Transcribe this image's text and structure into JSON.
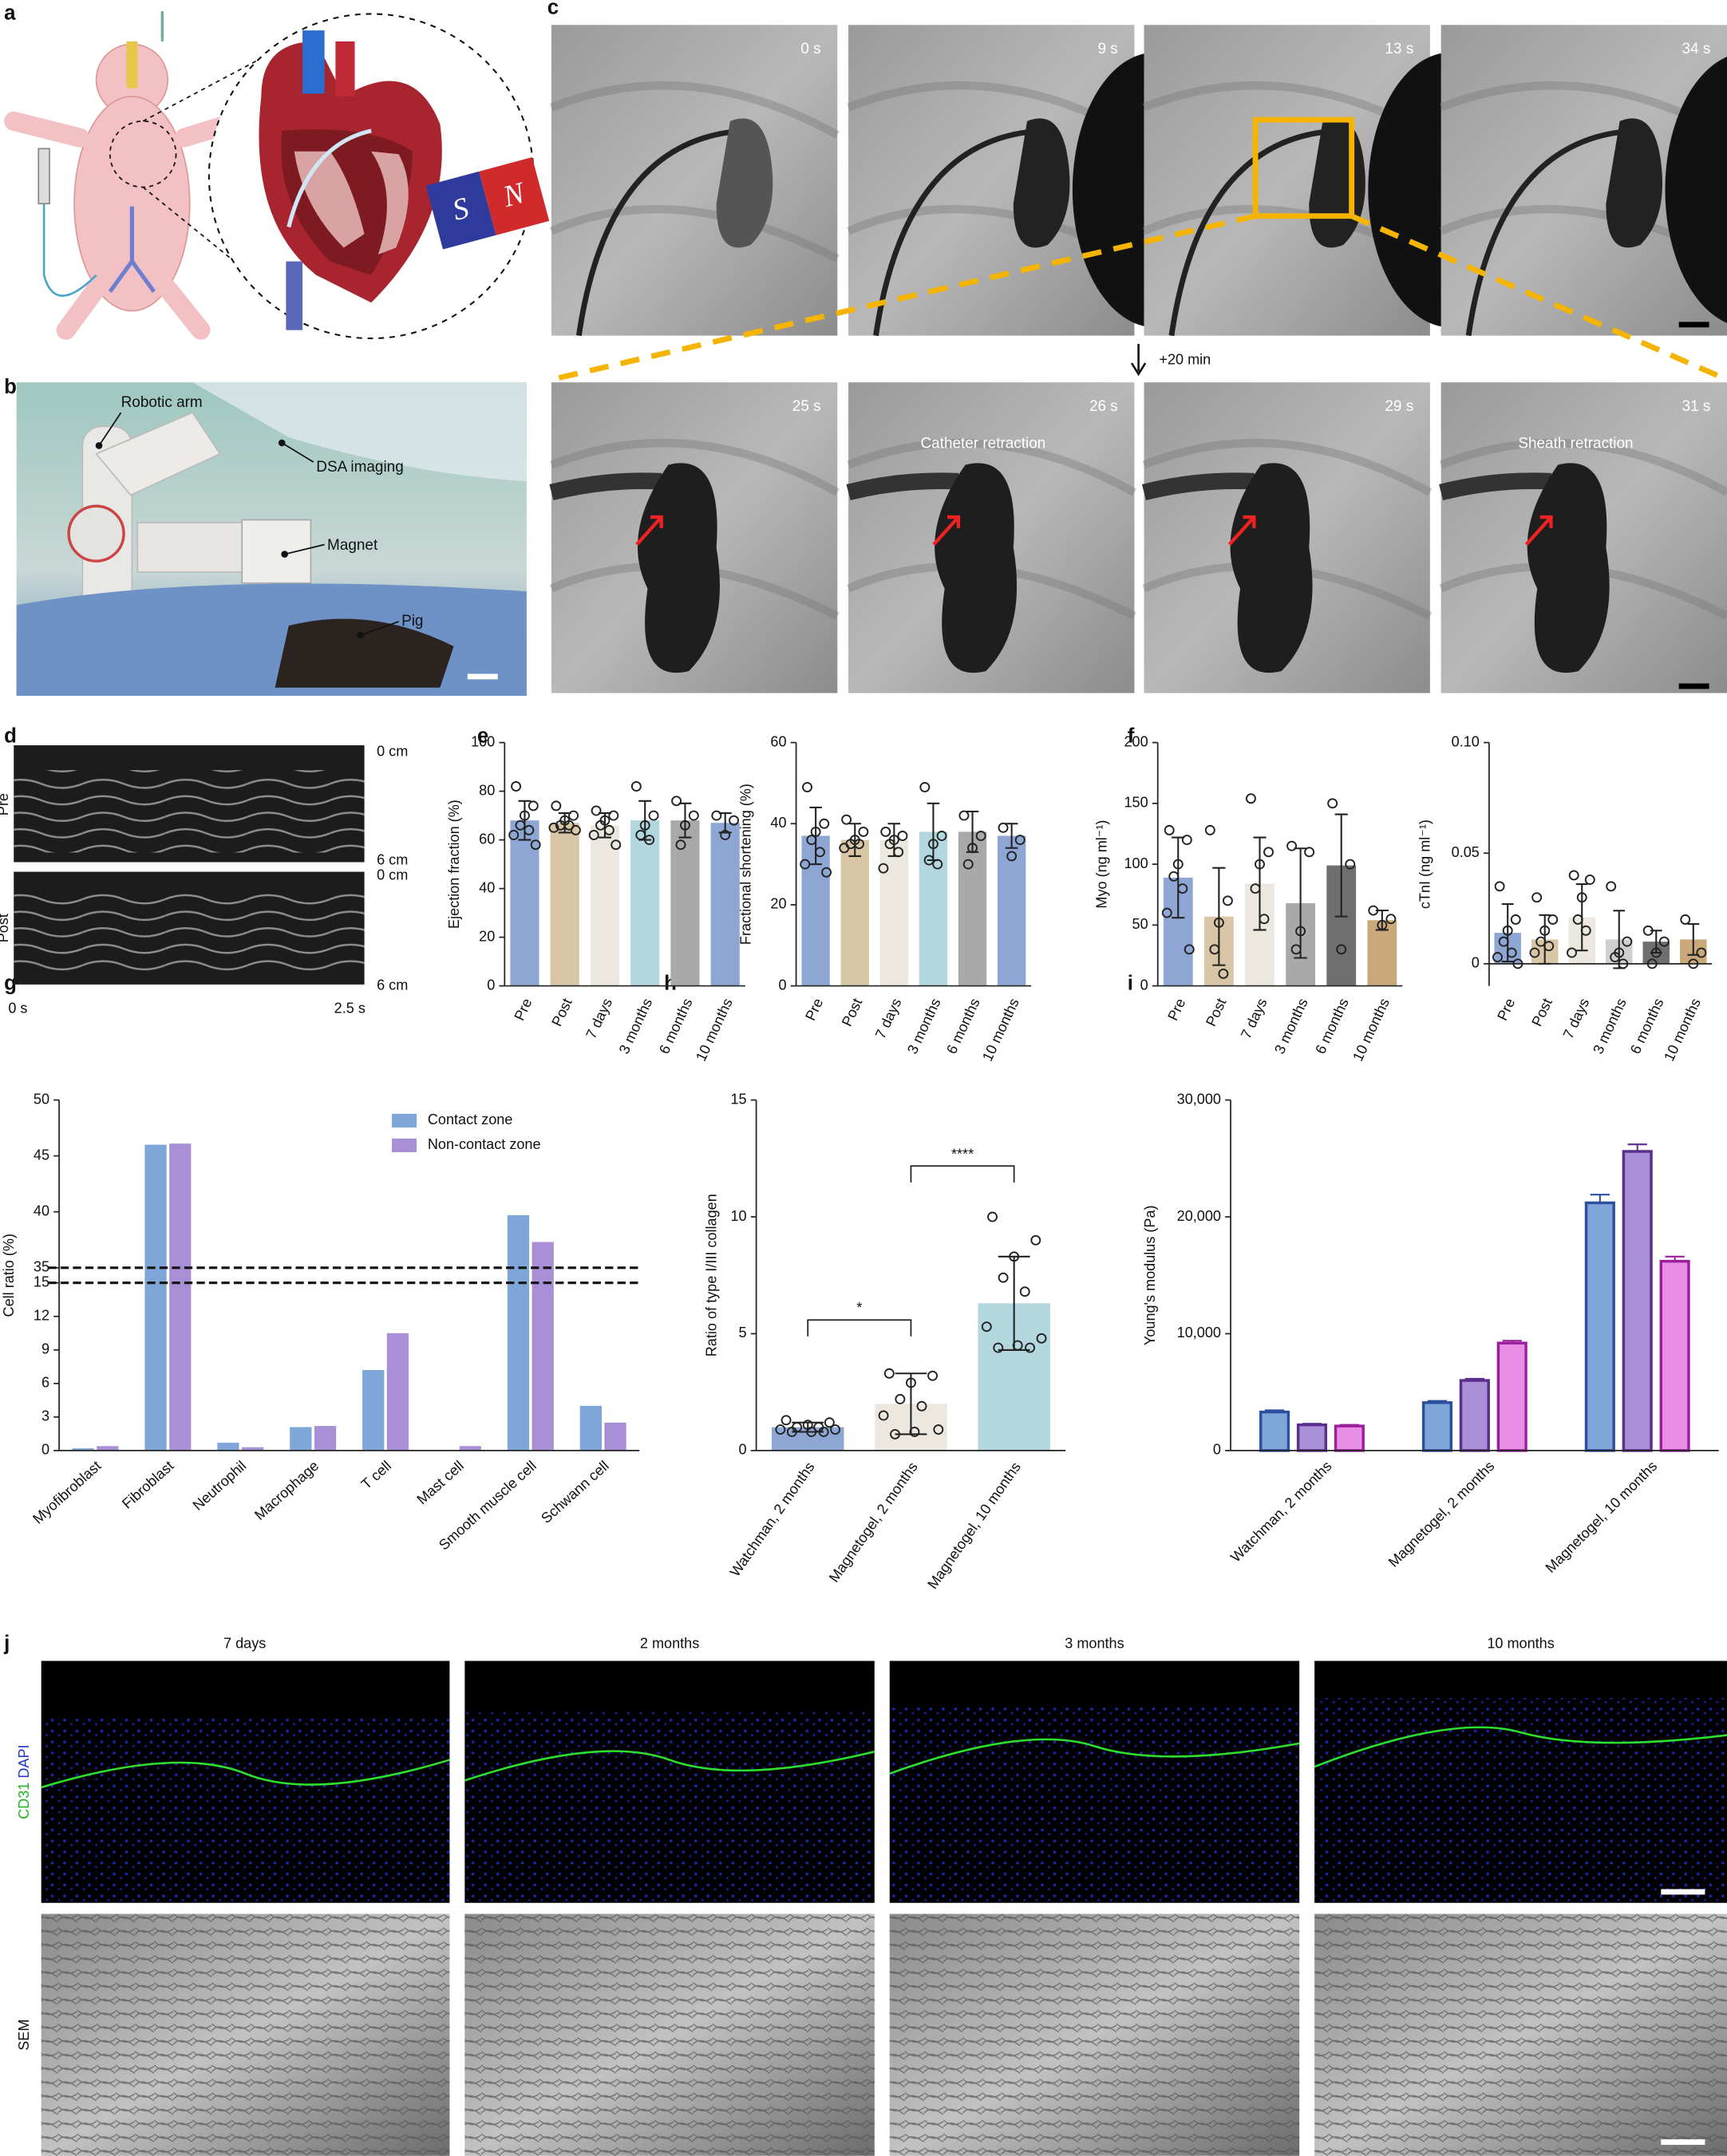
{
  "panel_letters": [
    "a",
    "b",
    "c",
    "d",
    "e",
    "f",
    "g",
    "h",
    "i",
    "j"
  ],
  "panel_a": {
    "magnet": [
      "S",
      "N"
    ]
  },
  "panel_b": {
    "callouts": [
      "Robotic arm",
      "DSA imaging",
      "Magnet",
      "Pig"
    ]
  },
  "panel_c": {
    "times_top": [
      "0 s",
      "9 s",
      "13 s",
      "34 s"
    ],
    "times_bottom": [
      "25 s",
      "26 s",
      "29 s",
      "31 s"
    ],
    "interval": "+20 min",
    "captions": [
      "Catheter retraction",
      "Sheath retraction"
    ]
  },
  "panel_d": {
    "rows": [
      "Pre",
      "Post"
    ],
    "depth_labels": [
      "0 cm",
      "6 cm",
      "0 cm",
      "6 cm"
    ],
    "time_labels": [
      "0 s",
      "2.5 s"
    ]
  },
  "panel_j": {
    "columns": [
      "7 days",
      "2 months",
      "3 months",
      "10 months"
    ],
    "stain": [
      "CD31",
      "DAPI"
    ],
    "sem": "SEM"
  },
  "chart_data": [
    {
      "type": "bar",
      "y_label": "Ejection fraction (%)",
      "categories": [
        "Pre",
        "Post",
        "7 days",
        "3 months",
        "6 months",
        "10 months"
      ],
      "values": [
        68,
        67,
        66,
        68,
        68,
        67
      ],
      "errors": [
        8,
        4,
        5,
        8,
        7,
        4
      ],
      "points": [
        [
          82,
          74,
          70,
          66,
          64,
          62,
          58
        ],
        [
          74,
          70,
          68,
          66,
          66,
          65,
          64
        ],
        [
          72,
          70,
          68,
          66,
          64,
          62,
          58
        ],
        [
          82,
          70,
          66,
          62,
          60
        ],
        [
          76,
          70,
          66,
          58
        ],
        [
          70,
          68,
          62
        ]
      ],
      "colors": [
        "#8ea6d4",
        "#d8c6a6",
        "#ece8df",
        "#b3d7de",
        "#a9a9a9",
        "#8ea6d4"
      ],
      "ylim": [
        0,
        100
      ],
      "yticks": [
        0,
        20,
        40,
        60,
        80,
        100
      ]
    },
    {
      "type": "bar",
      "y_label": "Fractional shortening (%)",
      "categories": [
        "Pre",
        "Post",
        "7 days",
        "3 months",
        "6 months",
        "10 months"
      ],
      "values": [
        37,
        36,
        36,
        38,
        38,
        37
      ],
      "errors": [
        7,
        4,
        4,
        7,
        5,
        3
      ],
      "points": [
        [
          49,
          40,
          38,
          36,
          33,
          30,
          28
        ],
        [
          41,
          38,
          36,
          35,
          35,
          34
        ],
        [
          38,
          37,
          36,
          35,
          33,
          29
        ],
        [
          49,
          37,
          35,
          31,
          30
        ],
        [
          42,
          37,
          34,
          30
        ],
        [
          39,
          36,
          32
        ]
      ],
      "colors": [
        "#8ea6d4",
        "#d8c6a6",
        "#ece8df",
        "#b3d7de",
        "#a9a9a9",
        "#8ea6d4"
      ],
      "ylim": [
        0,
        60
      ],
      "yticks": [
        0,
        20,
        40,
        60
      ]
    },
    {
      "type": "bar",
      "y_label": "Myo (ng ml⁻¹)",
      "categories": [
        "Pre",
        "Post",
        "7 days",
        "3 months",
        "6 months",
        "10 months"
      ],
      "values": [
        89,
        57,
        84,
        68,
        99,
        54
      ],
      "errors": [
        33,
        40,
        38,
        45,
        42,
        8
      ],
      "points": [
        [
          128,
          120,
          100,
          90,
          80,
          60,
          30
        ],
        [
          128,
          70,
          52,
          30,
          10
        ],
        [
          154,
          110,
          100,
          80,
          55
        ],
        [
          115,
          110,
          45,
          30
        ],
        [
          150,
          100,
          30
        ],
        [
          62,
          55,
          50
        ]
      ],
      "colors": [
        "#8ea6d4",
        "#d8c6a6",
        "#ece8df",
        "#a9a9a9",
        "#6f6f6f",
        "#c9a97a"
      ],
      "ylim": [
        0,
        200
      ],
      "yticks": [
        0,
        50,
        100,
        150,
        200
      ]
    },
    {
      "type": "bar",
      "y_label": "cTnI (ng ml⁻¹)",
      "categories": [
        "Pre",
        "Post",
        "7 days",
        "3 months",
        "6 months",
        "10 months"
      ],
      "values": [
        0.014,
        0.011,
        0.021,
        0.011,
        0.01,
        0.011
      ],
      "errors": [
        0.013,
        0.011,
        0.015,
        0.013,
        0.005,
        0.007
      ],
      "points": [
        [
          0.035,
          0.02,
          0.015,
          0.01,
          0.005,
          0.003,
          0
        ],
        [
          0.03,
          0.02,
          0.015,
          0.01,
          0.008,
          0.005
        ],
        [
          0.04,
          0.038,
          0.03,
          0.02,
          0.015,
          0.005
        ],
        [
          0.035,
          0.01,
          0.005,
          0.003,
          0
        ],
        [
          0.015,
          0.01,
          0.005,
          0
        ],
        [
          0.02,
          0.005,
          0
        ]
      ],
      "colors": [
        "#8ea6d4",
        "#d8c6a6",
        "#ece8df",
        "#cfcfcf",
        "#6f6f6f",
        "#c9a97a"
      ],
      "ylim": [
        -0.01,
        0.1
      ],
      "yticks": [
        0,
        0.05,
        {
          "value": 0.1,
          "label": "0.10"
        }
      ]
    },
    {
      "type": "broken_bar",
      "y_label": "Cell ratio (%)",
      "categories": [
        "Myofibroblast",
        "Fibroblast",
        "Neutrophil",
        "Macrophage",
        "T cell",
        "Mast cell",
        "Smooth muscle cell",
        "Schwann cell"
      ],
      "series": [
        {
          "name": "Contact zone",
          "color": "#7ea6d8",
          "values": [
            0.2,
            46,
            0.7,
            2.1,
            7.2,
            0,
            39.7,
            4.0
          ]
        },
        {
          "name": "Non-contact zone",
          "color": "#a98fd6",
          "values": [
            0.4,
            46.1,
            0.3,
            2.2,
            10.5,
            0.4,
            37.3,
            2.5
          ]
        }
      ],
      "ylim_lower": [
        0,
        15
      ],
      "yticks_lower": [
        0,
        3,
        6,
        9,
        12,
        15
      ],
      "ylim_upper": [
        35,
        50
      ],
      "yticks_upper": [
        35,
        40,
        45,
        50
      ],
      "legend": "upper right"
    },
    {
      "type": "bar",
      "y_label": "Ratio of type I/III collagen",
      "categories": [
        "Watchman, 2 months",
        "Magnetogel, 2 months",
        "Magnetogel, 10 months"
      ],
      "values": [
        1.0,
        2.0,
        6.3
      ],
      "errors": [
        0.2,
        1.3,
        2.0
      ],
      "points": [
        [
          1.3,
          1.2,
          1.1,
          1.0,
          1.0,
          0.9,
          0.9,
          0.8,
          0.8,
          0.8
        ],
        [
          3.3,
          3.2,
          2.9,
          2.2,
          1.9,
          1.5,
          0.9,
          0.8,
          0.7
        ],
        [
          10.0,
          9.0,
          8.3,
          7.4,
          6.8,
          5.3,
          4.8,
          4.5,
          4.4,
          4.4
        ]
      ],
      "colors": [
        "#8ea6d4",
        "#ece8df",
        "#b3d7de"
      ],
      "significance": [
        "*",
        "****"
      ],
      "ylim": [
        0,
        15
      ],
      "yticks": [
        0,
        5,
        10,
        15
      ]
    },
    {
      "type": "grouped_bar",
      "y_label": "Young's modulus (Pa)",
      "categories": [
        "Watchman, 2 months",
        "Magnetogel, 2 months",
        "Magnetogel, 10 months"
      ],
      "series": [
        {
          "color": "#7ea6d8",
          "edge": "#2c4f9e",
          "values": [
            3300,
            4100,
            21200
          ],
          "errors": [
            150,
            150,
            700
          ]
        },
        {
          "color": "#a98fd6",
          "edge": "#5b2d8c",
          "values": [
            2200,
            6000,
            25600
          ],
          "errors": [
            100,
            150,
            600
          ]
        },
        {
          "color": "#e98ee6",
          "edge": "#9b1f9b",
          "values": [
            2100,
            9200,
            16200
          ],
          "errors": [
            100,
            200,
            400
          ]
        }
      ],
      "ylim": [
        0,
        30000
      ],
      "yticks": [
        0,
        {
          "value": 10000,
          "label": "10,000"
        },
        {
          "value": 20000,
          "label": "20,000"
        },
        {
          "value": 30000,
          "label": "30,000"
        }
      ]
    }
  ]
}
